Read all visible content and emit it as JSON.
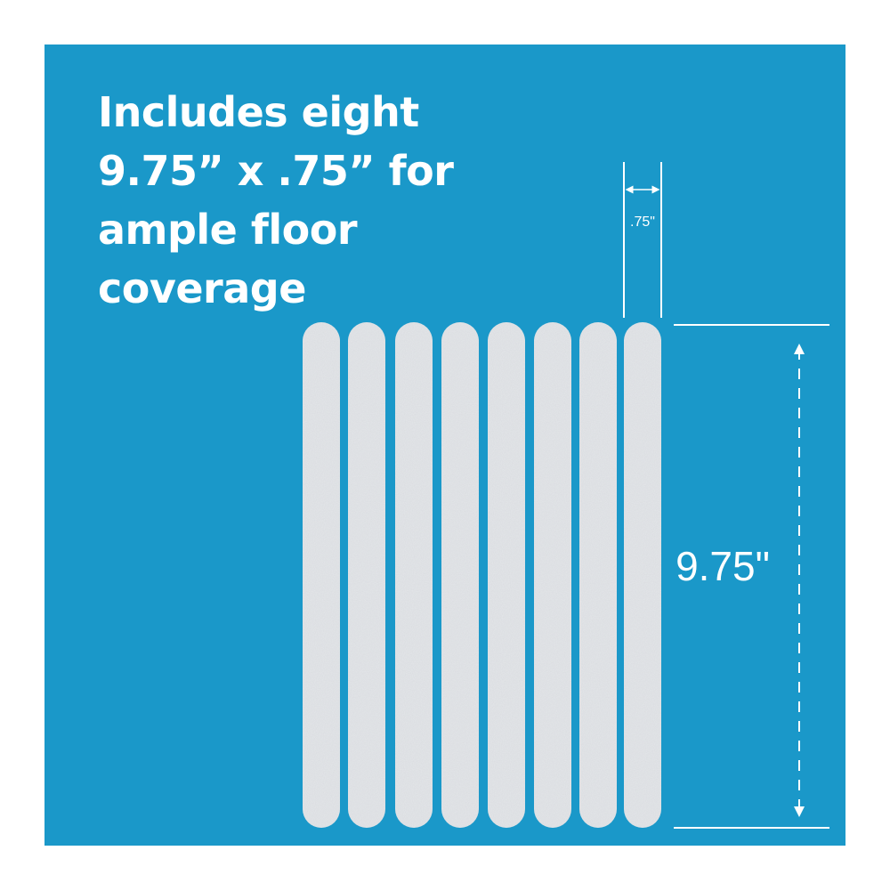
{
  "headline": {
    "lines": [
      "Includes eight",
      "9.75” x .75” for",
      "ample floor",
      "coverage"
    ]
  },
  "dimensions": {
    "width_label": ".75\"",
    "length_label": "9.75\""
  }
}
